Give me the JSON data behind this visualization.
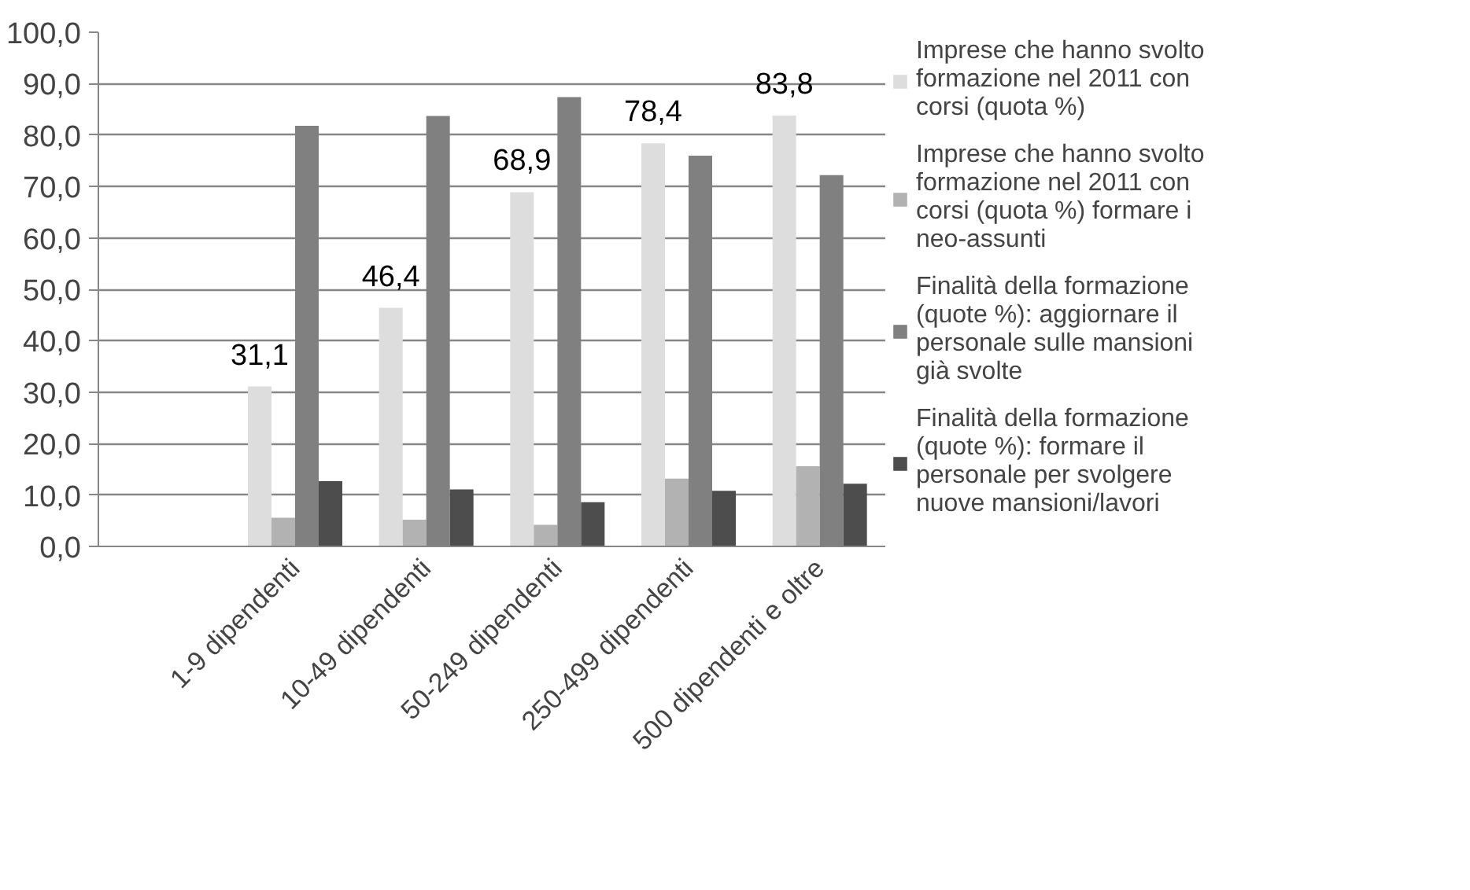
{
  "chart_data": {
    "type": "bar",
    "categories": [
      null,
      "1-9 dipendenti",
      "10-49 dipendenti",
      "50-249 dipendenti",
      "250-499 dipendenti",
      "500 dipendenti e oltre"
    ],
    "series": [
      {
        "name": "Imprese che hanno svolto formazione nel 2011 con corsi (quota %)",
        "color": "#dddddd",
        "values": [
          null,
          31.1,
          46.4,
          68.9,
          78.4,
          83.8
        ],
        "value_labels": [
          null,
          "31,1",
          "46,4",
          "68,9",
          "78,4",
          "83,8"
        ]
      },
      {
        "name": "Imprese che hanno svolto formazione nel 2011 con corsi (quota %) formare i neo-assunti",
        "color": "#b2b2b2",
        "values": [
          null,
          5.6,
          5.2,
          4.2,
          13.2,
          15.6
        ]
      },
      {
        "name": "Finalità della formazione (quote %): aggiornare il personale sulle mansioni già svolte",
        "color": "#808080",
        "values": [
          null,
          81.8,
          83.7,
          87.4,
          76.0,
          72.2
        ]
      },
      {
        "name": "Finalità della formazione (quote %): formare il personale per svolgere nuove mansioni/lavori",
        "color": "#4d4d4d",
        "values": [
          null,
          12.7,
          11.1,
          8.6,
          10.8,
          12.2
        ]
      }
    ],
    "ylim": [
      0,
      100
    ],
    "yticks": [
      {
        "value": 0,
        "label": "0,0"
      },
      {
        "value": 10,
        "label": "10,0"
      },
      {
        "value": 20,
        "label": "20,0"
      },
      {
        "value": 30,
        "label": "30,0"
      },
      {
        "value": 40,
        "label": "40,0"
      },
      {
        "value": 50,
        "label": "50,0"
      },
      {
        "value": 60,
        "label": "60,0"
      },
      {
        "value": 70,
        "label": "70,0"
      },
      {
        "value": 80,
        "label": "80,0"
      },
      {
        "value": 90,
        "label": "90,0"
      },
      {
        "value": 100,
        "label": "100,0"
      }
    ],
    "grid": "y",
    "legend": "right"
  }
}
